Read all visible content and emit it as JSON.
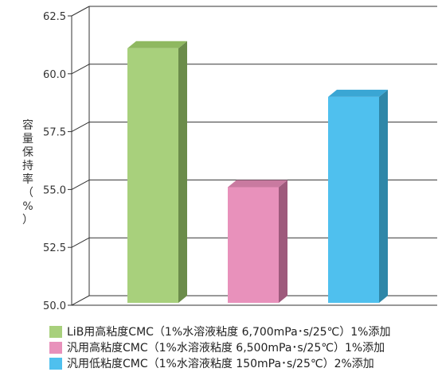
{
  "chart_data": {
    "type": "bar",
    "ylabel": "容量保持率（%）",
    "ylim": [
      50.0,
      62.5
    ],
    "yticks": [
      "50.0",
      "52.5",
      "55.0",
      "57.5",
      "60.0",
      "62.5"
    ],
    "grid": true,
    "legend_position": "bottom",
    "series": [
      {
        "name": "LiB用高粘度CMC（1%水溶液粘度 6,700mPa･s/25℃）1%添加",
        "value": 61.1,
        "color": "#a8d07c",
        "side": "#6b8c4a",
        "top": "#8fb860"
      },
      {
        "name": "汎用高粘度CMC（1%水溶液粘度 6,500mPa･s/25℃）1%添加",
        "value": 55.1,
        "color": "#e891bb",
        "side": "#9e5a7c",
        "top": "#c97aa0"
      },
      {
        "name": "汎用低粘度CMC（1%水溶液粘度 150mPa･s/25℃）2%添加",
        "value": 59.0,
        "color": "#4fc0ee",
        "side": "#2f87a8",
        "top": "#3aa6d4"
      }
    ]
  }
}
